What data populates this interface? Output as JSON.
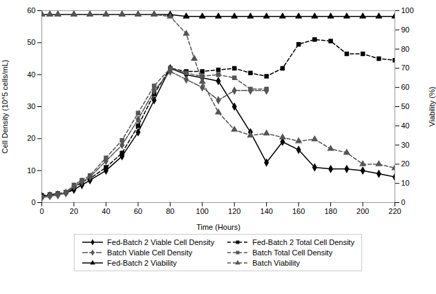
{
  "chart_data": {
    "type": "line",
    "xlabel": "Time (Hours)",
    "ylabel": "Cell Density (10^5 cells/mL)",
    "y2label": "Viability (%)",
    "xlim": [
      0,
      220
    ],
    "ylim": [
      0,
      60
    ],
    "y2lim": [
      0,
      100
    ],
    "xticks": [
      0,
      20,
      40,
      60,
      80,
      100,
      120,
      140,
      160,
      180,
      200,
      220
    ],
    "yticks": [
      0,
      10,
      20,
      30,
      40,
      50,
      60
    ],
    "y2ticks": [
      0,
      10,
      20,
      30,
      40,
      50,
      60,
      70,
      80,
      90,
      100
    ],
    "grid": false,
    "legend": "bottom",
    "series": [
      {
        "name": "Fed-Batch 2 Viable Cell Density",
        "color": "#000000",
        "marker": "diamond",
        "line_style": "solid",
        "x": [
          0,
          5,
          10,
          15,
          20,
          25,
          30,
          40,
          50,
          60,
          70,
          80,
          90,
          100,
          110,
          120,
          130,
          140,
          150,
          160,
          170,
          180,
          190,
          200,
          210,
          220
        ],
        "values": [
          2.0,
          2.2,
          2.5,
          3.0,
          4.0,
          5.5,
          7.0,
          10.0,
          14.5,
          22.0,
          32.0,
          42.0,
          40.0,
          39.0,
          38.0,
          30.0,
          22.0,
          12.5,
          19.0,
          16.5,
          11.0,
          10.5,
          10.5,
          10.0,
          9.0,
          8.0
        ]
      },
      {
        "name": "Fed-Batch 2 Total Cell Density",
        "color": "#000000",
        "marker": "square",
        "line_style": "dashed",
        "x": [
          0,
          5,
          10,
          15,
          20,
          25,
          30,
          40,
          50,
          60,
          70,
          80,
          90,
          100,
          110,
          120,
          130,
          140,
          150,
          160,
          170,
          180,
          190,
          200,
          210,
          220
        ],
        "values": [
          2.2,
          2.5,
          2.8,
          3.2,
          4.5,
          6.5,
          7.5,
          11.0,
          15.5,
          24.0,
          34.0,
          42.0,
          41.0,
          41.0,
          41.5,
          42.0,
          40.5,
          39.5,
          42.0,
          49.5,
          51.0,
          50.5,
          46.5,
          46.5,
          45.0,
          44.5
        ]
      },
      {
        "name": "Batch Viable Cell Density",
        "color": "#555555",
        "marker": "diamond",
        "line_style": "longdash",
        "x": [
          0,
          5,
          10,
          15,
          20,
          25,
          30,
          40,
          50,
          60,
          70,
          80,
          90,
          100,
          110,
          120,
          130,
          140
        ],
        "values": [
          1.5,
          2.0,
          2.3,
          3.0,
          5.0,
          6.5,
          8.0,
          13.0,
          18.0,
          26.0,
          35.0,
          41.0,
          38.5,
          36.0,
          32.0,
          35.0,
          35.0,
          35.0
        ]
      },
      {
        "name": "Batch Total Cell Density",
        "color": "#555555",
        "marker": "square",
        "line_style": "dashed",
        "x": [
          0,
          5,
          10,
          15,
          20,
          25,
          30,
          40,
          50,
          60,
          70,
          80,
          90,
          100,
          110,
          120,
          130,
          140
        ],
        "values": [
          1.8,
          2.2,
          2.6,
          3.2,
          5.5,
          7.0,
          8.5,
          14.0,
          19.5,
          28.0,
          36.5,
          42.0,
          40.5,
          39.5,
          40.0,
          39.0,
          35.5,
          35.5
        ]
      },
      {
        "name": "Fed-Batch 2 Viability",
        "color": "#000000",
        "marker": "triangle",
        "line_style": "solid",
        "axis": "y2",
        "x": [
          0,
          5,
          10,
          20,
          30,
          40,
          50,
          60,
          70,
          80,
          90,
          100,
          110,
          120,
          130,
          140,
          150,
          160,
          170,
          180,
          190,
          200,
          210,
          220
        ],
        "values": [
          98,
          98,
          98,
          98,
          98,
          98,
          98,
          98,
          98,
          98,
          97,
          97,
          97,
          97,
          97,
          97,
          97,
          97,
          97,
          97,
          97,
          97,
          97,
          97
        ]
      },
      {
        "name": "Batch Viability",
        "color": "#555555",
        "marker": "triangle",
        "line_style": "dashed",
        "axis": "y2",
        "x": [
          0,
          5,
          10,
          20,
          30,
          40,
          50,
          60,
          70,
          80,
          90,
          95,
          100,
          110,
          120,
          130,
          140,
          150,
          160,
          170,
          180,
          190,
          200,
          210,
          220
        ],
        "values": [
          98,
          98,
          98,
          98,
          98,
          98,
          98,
          98,
          98,
          97,
          88,
          75,
          63,
          47,
          38,
          35,
          36,
          34,
          32,
          33,
          28,
          26,
          20,
          20,
          18
        ]
      }
    ]
  }
}
